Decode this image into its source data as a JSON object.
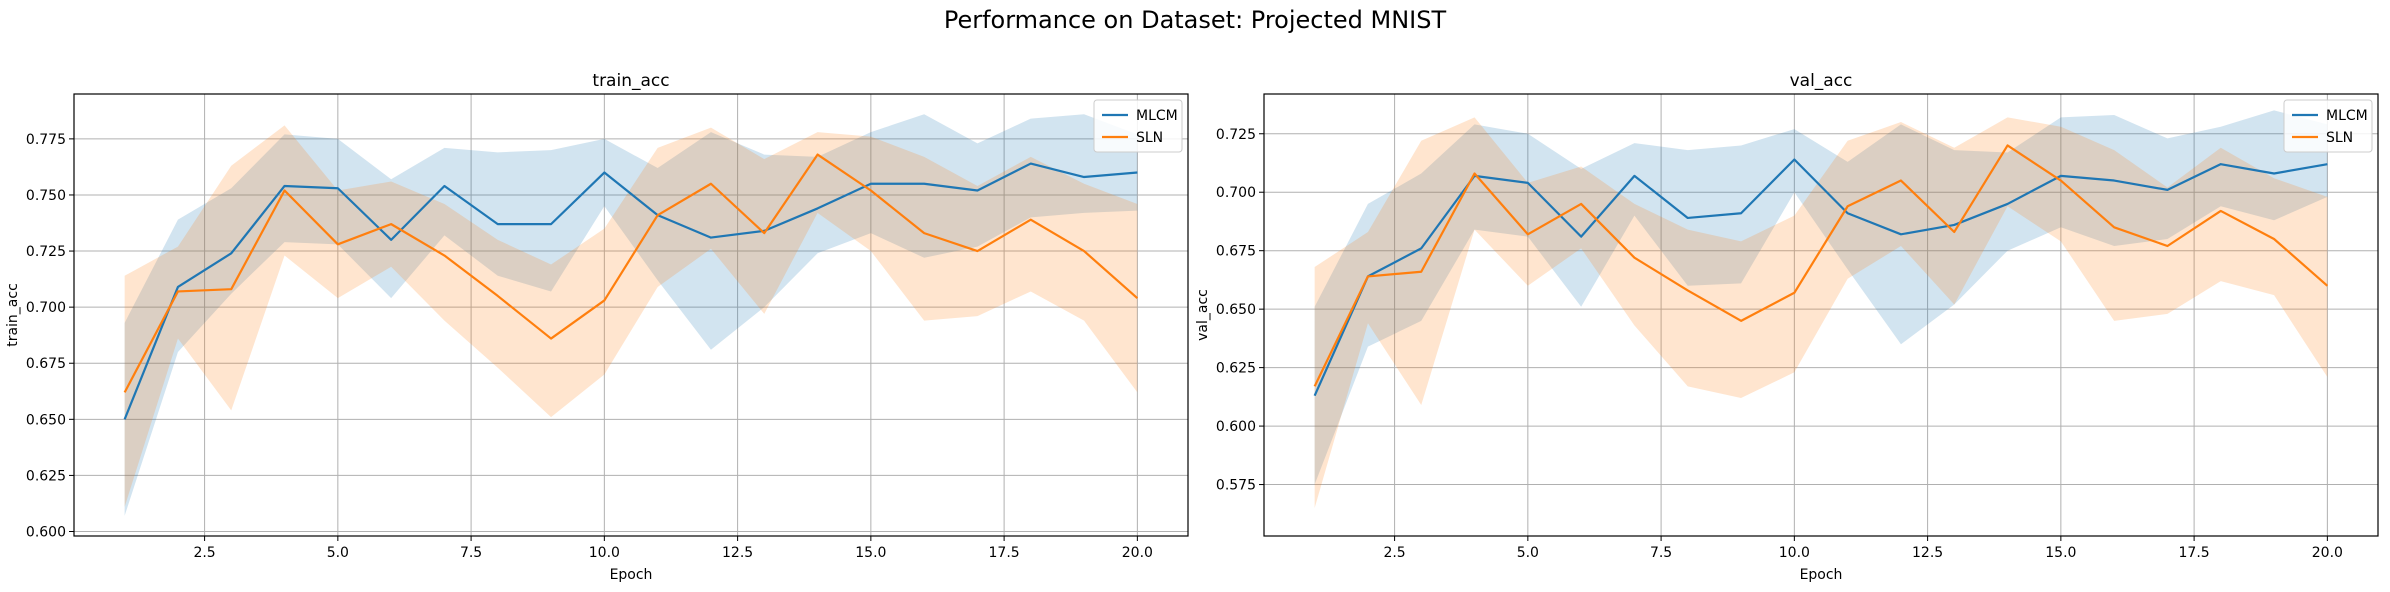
{
  "suptitle": "Performance on Dataset: Projected MNIST",
  "colors": {
    "MLCM": "#1f77b4",
    "SLN": "#ff7f0e",
    "grid": "#b0b0b0"
  },
  "chart_data": [
    {
      "type": "line",
      "title": "train_acc",
      "xlabel": "Epoch",
      "ylabel": "train_acc",
      "xlim": [
        0.05,
        20.95
      ],
      "ylim": [
        0.598,
        0.795
      ],
      "xticks": [
        2.5,
        5.0,
        7.5,
        10.0,
        12.5,
        15.0,
        17.5,
        20.0
      ],
      "xtick_labels": [
        "2.5",
        "5.0",
        "7.5",
        "10.0",
        "12.5",
        "15.0",
        "17.5",
        "20.0"
      ],
      "yticks": [
        0.6,
        0.625,
        0.65,
        0.675,
        0.7,
        0.725,
        0.75,
        0.775
      ],
      "ytick_labels": [
        "0.600",
        "0.625",
        "0.650",
        "0.675",
        "0.700",
        "0.725",
        "0.750",
        "0.775"
      ],
      "grid": true,
      "legend": "top-right",
      "x": [
        1,
        2,
        3,
        4,
        5,
        6,
        7,
        8,
        9,
        10,
        11,
        12,
        13,
        14,
        15,
        16,
        17,
        18,
        19,
        20
      ],
      "series": [
        {
          "name": "MLCM",
          "values": [
            0.65,
            0.709,
            0.724,
            0.754,
            0.753,
            0.73,
            0.754,
            0.737,
            0.737,
            0.76,
            0.741,
            0.731,
            0.734,
            0.744,
            0.755,
            0.755,
            0.752,
            0.764,
            0.758,
            0.76
          ],
          "lower": [
            0.607,
            0.68,
            0.706,
            0.729,
            0.728,
            0.704,
            0.732,
            0.714,
            0.707,
            0.745,
            0.712,
            0.681,
            0.7,
            0.724,
            0.733,
            0.722,
            0.727,
            0.74,
            0.742,
            0.743
          ],
          "upper": [
            0.693,
            0.739,
            0.753,
            0.777,
            0.775,
            0.757,
            0.771,
            0.769,
            0.77,
            0.775,
            0.762,
            0.778,
            0.768,
            0.767,
            0.778,
            0.786,
            0.773,
            0.784,
            0.786,
            0.777
          ]
        },
        {
          "name": "SLN",
          "values": [
            0.662,
            0.707,
            0.708,
            0.752,
            0.728,
            0.737,
            0.723,
            0.705,
            0.686,
            0.703,
            0.741,
            0.755,
            0.733,
            0.768,
            0.752,
            0.733,
            0.725,
            0.739,
            0.725,
            0.704
          ],
          "lower": [
            0.611,
            0.686,
            0.654,
            0.723,
            0.704,
            0.718,
            0.694,
            0.673,
            0.651,
            0.67,
            0.709,
            0.726,
            0.697,
            0.742,
            0.725,
            0.694,
            0.696,
            0.707,
            0.694,
            0.662
          ],
          "upper": [
            0.714,
            0.727,
            0.763,
            0.781,
            0.752,
            0.756,
            0.746,
            0.73,
            0.719,
            0.735,
            0.771,
            0.78,
            0.766,
            0.778,
            0.776,
            0.767,
            0.754,
            0.767,
            0.755,
            0.746
          ]
        }
      ]
    },
    {
      "type": "line",
      "title": "val_acc",
      "xlabel": "Epoch",
      "ylabel": "val_acc",
      "xlim": [
        0.05,
        20.95
      ],
      "ylim": [
        0.553,
        0.742
      ],
      "xticks": [
        2.5,
        5.0,
        7.5,
        10.0,
        12.5,
        15.0,
        17.5,
        20.0
      ],
      "xtick_labels": [
        "2.5",
        "5.0",
        "7.5",
        "10.0",
        "12.5",
        "15.0",
        "17.5",
        "20.0"
      ],
      "yticks": [
        0.575,
        0.6,
        0.625,
        0.65,
        0.675,
        0.7,
        0.725
      ],
      "ytick_labels": [
        "0.575",
        "0.600",
        "0.625",
        "0.650",
        "0.675",
        "0.700",
        "0.725"
      ],
      "grid": true,
      "legend": "top-right",
      "x": [
        1,
        2,
        3,
        4,
        5,
        6,
        7,
        8,
        9,
        10,
        11,
        12,
        13,
        14,
        15,
        16,
        17,
        18,
        19,
        20
      ],
      "series": [
        {
          "name": "MLCM",
          "values": [
            0.613,
            0.664,
            0.676,
            0.707,
            0.704,
            0.681,
            0.707,
            0.689,
            0.691,
            0.714,
            0.691,
            0.682,
            0.686,
            0.695,
            0.707,
            0.705,
            0.701,
            0.712,
            0.708,
            0.712
          ],
          "lower": [
            0.575,
            0.634,
            0.645,
            0.684,
            0.681,
            0.651,
            0.69,
            0.66,
            0.661,
            0.7,
            0.667,
            0.635,
            0.652,
            0.675,
            0.685,
            0.677,
            0.68,
            0.694,
            0.688,
            0.698
          ],
          "upper": [
            0.651,
            0.695,
            0.708,
            0.729,
            0.725,
            0.71,
            0.721,
            0.718,
            0.72,
            0.727,
            0.713,
            0.729,
            0.718,
            0.717,
            0.732,
            0.733,
            0.723,
            0.728,
            0.735,
            0.729
          ]
        },
        {
          "name": "SLN",
          "values": [
            0.617,
            0.664,
            0.666,
            0.708,
            0.682,
            0.695,
            0.672,
            0.658,
            0.645,
            0.657,
            0.694,
            0.705,
            0.683,
            0.72,
            0.705,
            0.685,
            0.677,
            0.692,
            0.68,
            0.66
          ],
          "lower": [
            0.565,
            0.644,
            0.609,
            0.684,
            0.66,
            0.676,
            0.643,
            0.617,
            0.612,
            0.623,
            0.663,
            0.677,
            0.652,
            0.694,
            0.679,
            0.645,
            0.648,
            0.662,
            0.656,
            0.621
          ],
          "upper": [
            0.668,
            0.683,
            0.722,
            0.732,
            0.704,
            0.711,
            0.695,
            0.684,
            0.679,
            0.69,
            0.722,
            0.73,
            0.719,
            0.732,
            0.728,
            0.718,
            0.702,
            0.719,
            0.706,
            0.698
          ]
        }
      ]
    }
  ]
}
